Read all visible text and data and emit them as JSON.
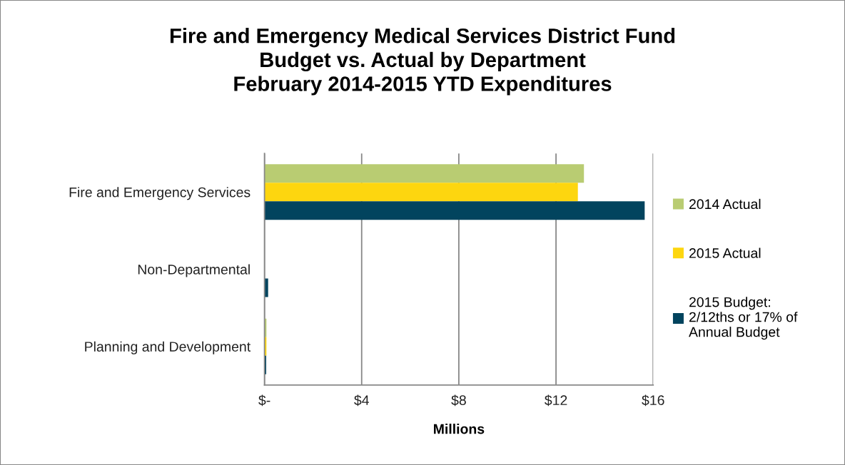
{
  "chart_data": {
    "type": "bar",
    "orientation": "horizontal",
    "title": "Fire and Emergency Medical Services District Fund\nBudget vs. Actual by Department\nFebruary 2014-2015 YTD Expenditures",
    "xlabel": "Millions",
    "categories": [
      "Fire and Emergency Services",
      "Non-Departmental",
      "Planning and Development"
    ],
    "series": [
      {
        "name": "2014 Actual",
        "color": "#b9cc72",
        "values": [
          13.15,
          0,
          0.08
        ]
      },
      {
        "name": "2015 Actual",
        "color": "#fdd60f",
        "values": [
          12.9,
          0,
          0.08
        ]
      },
      {
        "name": "2015 Budget: 2/12ths or 17% of Annual Budget",
        "color": "#02445e",
        "values": [
          15.65,
          0.15,
          0.07
        ]
      }
    ],
    "xlim": [
      0,
      16
    ],
    "xticks": [
      {
        "value": 0,
        "label": "$-"
      },
      {
        "value": 4,
        "label": "$4"
      },
      {
        "value": 8,
        "label": "$8"
      },
      {
        "value": 12,
        "label": "$12"
      },
      {
        "value": 16,
        "label": "$16"
      }
    ],
    "grid": "x",
    "legend": "right"
  }
}
